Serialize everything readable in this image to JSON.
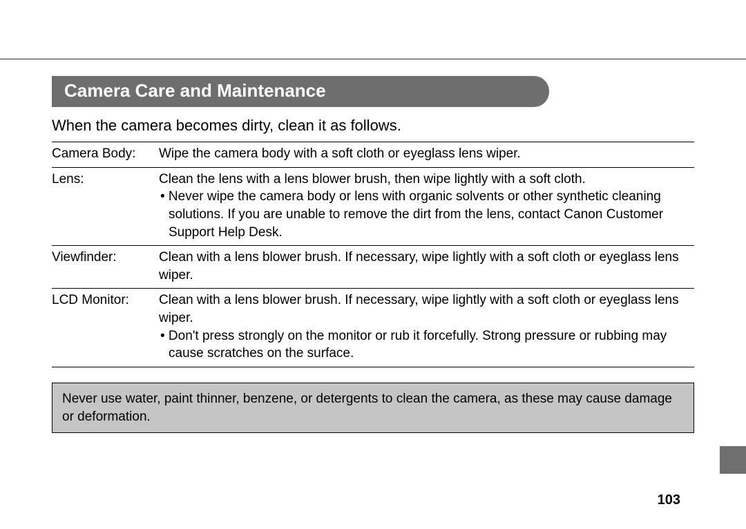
{
  "heading": "Camera Care and Maintenance",
  "intro": "When the camera becomes dirty, clean it as follows.",
  "rows": [
    {
      "label": "Camera Body:",
      "text": "Wipe the camera body with a soft cloth or eyeglass lens wiper.",
      "bullet": ""
    },
    {
      "label": "Lens:",
      "text": "Clean the lens with a lens blower brush, then wipe lightly with a soft cloth.",
      "bullet": "• Never wipe the camera body or lens with organic solvents or other synthetic cleaning solutions. If you are unable to remove the dirt from the lens, contact Canon Customer Support Help Desk."
    },
    {
      "label": "Viewfinder:",
      "text": "Clean with a lens blower brush. If necessary, wipe lightly with a soft cloth or eyeglass lens wiper.",
      "bullet": ""
    },
    {
      "label": "LCD Monitor:",
      "text": "Clean with a lens blower brush. If necessary, wipe lightly with a soft cloth or eyeglass lens wiper.",
      "bullet": "• Don't press strongly on the monitor or rub it forcefully. Strong pressure or rubbing may cause scratches on the surface."
    }
  ],
  "warning": "Never use water, paint thinner, benzene, or detergents to clean the camera, as these may cause damage or deformation.",
  "page_number": "103",
  "colors": {
    "heading_bg": "#6e6e6e",
    "heading_fg": "#ffffff",
    "warning_bg": "#c5c5c5",
    "sidebar_bg": "#6f6f6f",
    "text": "#000000",
    "page_bg": "#ffffff"
  }
}
